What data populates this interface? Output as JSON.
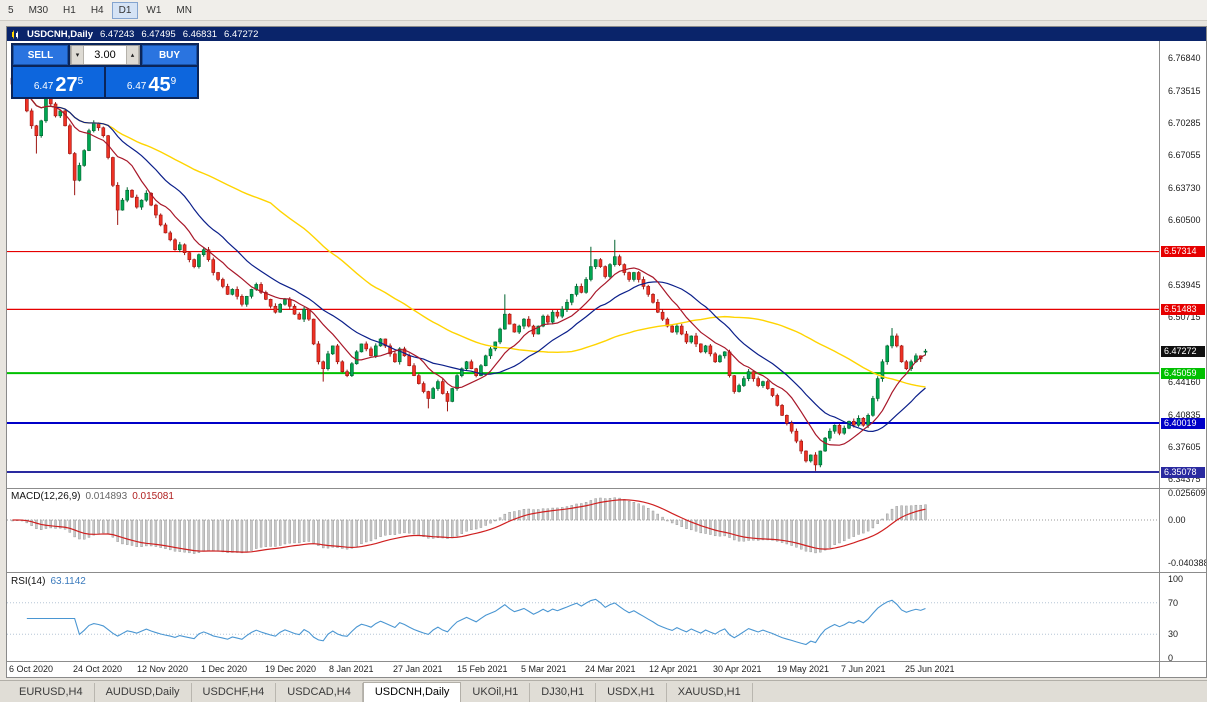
{
  "toolbar": {
    "timeframes": [
      "5",
      "M30",
      "H1",
      "H4",
      "D1",
      "W1",
      "MN"
    ],
    "active": "D1"
  },
  "window": {
    "title_symbol": "USDCNH,Daily",
    "title_open": "6.47243",
    "title_high": "6.47495",
    "title_low": "6.46831",
    "title_close": "6.47272"
  },
  "trade_panel": {
    "sell_label": "SELL",
    "buy_label": "BUY",
    "lot_size": "3.00",
    "lot_down_glyph": "▾",
    "lot_up_glyph": "▴",
    "sell_price_prefix": "6.47",
    "sell_price_big": "27",
    "sell_price_sup": "5",
    "buy_price_prefix": "6.47",
    "buy_price_big": "45",
    "buy_price_sup": "9"
  },
  "price_axis": {
    "labels": [
      "6.76840",
      "6.73515",
      "6.70285",
      "6.67055",
      "6.63730",
      "6.60500",
      "6.53945",
      "6.50715",
      "6.44160",
      "6.40835",
      "6.37605",
      "6.34375"
    ],
    "current_price": {
      "value": 6.47272,
      "label": "6.47272",
      "color": "#101010"
    }
  },
  "levels": [
    {
      "value": 6.57314,
      "label": "6.57314",
      "color": "#e60000",
      "thickness": 1.2
    },
    {
      "value": 6.51483,
      "label": "6.51483",
      "color": "#e60000",
      "thickness": 1.2
    },
    {
      "value": 6.45059,
      "label": "6.45059",
      "color": "#00c000",
      "thickness": 2
    },
    {
      "value": 6.40019,
      "label": "6.40019",
      "color": "#0000c8",
      "thickness": 2
    },
    {
      "value": 6.35078,
      "label": "6.35078",
      "color": "#2a2aa0",
      "thickness": 2
    }
  ],
  "date_axis": [
    "6 Oct 2020",
    "24 Oct 2020",
    "12 Nov 2020",
    "1 Dec 2020",
    "19 Dec 2020",
    "8 Jan 2021",
    "27 Jan 2021",
    "15 Feb 2021",
    "5 Mar 2021",
    "24 Mar 2021",
    "12 Apr 2021",
    "30 Apr 2021",
    "19 May 2021",
    "7 Jun 2021",
    "25 Jun 2021"
  ],
  "macd_panel": {
    "label": "MACD(12,26,9)",
    "value_main": "0.014893",
    "value_signal": "0.015081",
    "axis_labels": [
      "0.025609",
      "0.00",
      "-0.040388"
    ],
    "axis_values": [
      0.025609,
      0,
      -0.040388
    ]
  },
  "rsi_panel": {
    "label": "RSI(14)",
    "value": "63.1142",
    "axis_labels": [
      "100",
      "70",
      "30",
      "0"
    ],
    "axis_values": [
      100,
      70,
      30,
      0
    ]
  },
  "tabs": [
    "EURUSD,H4",
    "AUDUSD,Daily",
    "USDCHF,H4",
    "USDCAD,H4",
    "USDCNH,Daily",
    "UKOil,H1",
    "DJ30,H1",
    "USDX,H1",
    "XAUUSD,H1"
  ],
  "active_tab": "USDCNH,Daily",
  "colors": {
    "up": "#00a651",
    "up_border": "#00632f",
    "down": "#ee3124",
    "down_border": "#9c1410",
    "ma_fast": "#a8182a",
    "ma_mid": "#0b1f8a",
    "ma_slow": "#ffd400",
    "macd_hist": "#c8c8c8",
    "macd_hist_border": "#8f8f8f",
    "macd_signal": "#cf2020",
    "rsi_line": "#4a96d2"
  },
  "chart_data": {
    "type": "candlestick",
    "title": "USDCNH Daily",
    "symbol": "USDCNH",
    "timeframe": "Daily",
    "y_range": [
      6.3347,
      6.7855
    ],
    "first_open": 6.748,
    "closes": [
      6.742,
      6.745,
      6.73,
      6.715,
      6.7,
      6.69,
      6.705,
      6.728,
      6.722,
      6.71,
      6.715,
      6.7,
      6.672,
      6.645,
      6.66,
      6.675,
      6.695,
      6.703,
      6.698,
      6.69,
      6.668,
      6.64,
      6.615,
      6.625,
      6.635,
      6.628,
      6.618,
      6.625,
      6.632,
      6.62,
      6.61,
      6.6,
      6.592,
      6.585,
      6.575,
      6.58,
      6.572,
      6.565,
      6.558,
      6.57,
      6.575,
      6.565,
      6.552,
      6.545,
      6.538,
      6.53,
      6.535,
      6.528,
      6.52,
      6.528,
      6.535,
      6.54,
      6.532,
      6.525,
      6.518,
      6.512,
      6.52,
      6.525,
      6.518,
      6.51,
      6.505,
      6.515,
      6.505,
      6.48,
      6.462,
      6.455,
      6.47,
      6.478,
      6.462,
      6.452,
      6.448,
      6.46,
      6.472,
      6.48,
      6.475,
      6.468,
      6.478,
      6.485,
      6.478,
      6.47,
      6.462,
      6.475,
      6.468,
      6.458,
      6.448,
      6.44,
      6.432,
      6.425,
      6.435,
      6.442,
      6.43,
      6.422,
      6.435,
      6.448,
      6.455,
      6.462,
      6.455,
      6.448,
      6.458,
      6.468,
      6.475,
      6.482,
      6.495,
      6.51,
      6.5,
      6.492,
      6.498,
      6.505,
      6.498,
      6.49,
      6.498,
      6.508,
      6.502,
      6.512,
      6.508,
      6.515,
      6.522,
      6.53,
      6.538,
      6.532,
      6.545,
      6.558,
      6.565,
      6.558,
      6.548,
      6.56,
      6.568,
      6.56,
      6.552,
      6.545,
      6.552,
      6.545,
      6.538,
      6.53,
      6.522,
      6.512,
      6.505,
      6.498,
      6.492,
      6.498,
      6.49,
      6.482,
      6.488,
      6.48,
      6.472,
      6.478,
      6.47,
      6.462,
      6.468,
      6.472,
      6.448,
      6.432,
      6.438,
      6.445,
      6.452,
      6.445,
      6.438,
      6.442,
      6.435,
      6.428,
      6.418,
      6.408,
      6.4,
      6.392,
      6.382,
      6.372,
      6.362,
      6.368,
      6.358,
      6.372,
      6.385,
      6.392,
      6.398,
      6.39,
      6.395,
      6.402,
      6.398,
      6.405,
      6.398,
      6.408,
      6.425,
      6.445,
      6.462,
      6.478,
      6.488,
      6.478,
      6.462,
      6.455,
      6.462,
      6.468,
      6.465,
      6.4727
    ],
    "overrides": [
      {
        "i": 5,
        "l": 6.672
      },
      {
        "i": 13,
        "l": 6.63
      },
      {
        "i": 22,
        "l": 6.6
      },
      {
        "i": 65,
        "l": 6.442
      },
      {
        "i": 87,
        "l": 6.415
      },
      {
        "i": 91,
        "l": 6.412
      },
      {
        "i": 103,
        "h": 6.53
      },
      {
        "i": 121,
        "h": 6.578
      },
      {
        "i": 126,
        "h": 6.585
      },
      {
        "i": 168,
        "l": 6.352
      },
      {
        "i": 184,
        "h": 6.496
      },
      {
        "i": 191,
        "o": 6.47243,
        "h": 6.47495,
        "l": 6.46831,
        "c": 6.47272
      }
    ],
    "indicators": {
      "ma_periods": [
        10,
        21,
        55
      ],
      "macd": [
        12,
        26,
        9
      ],
      "rsi": 14
    }
  }
}
